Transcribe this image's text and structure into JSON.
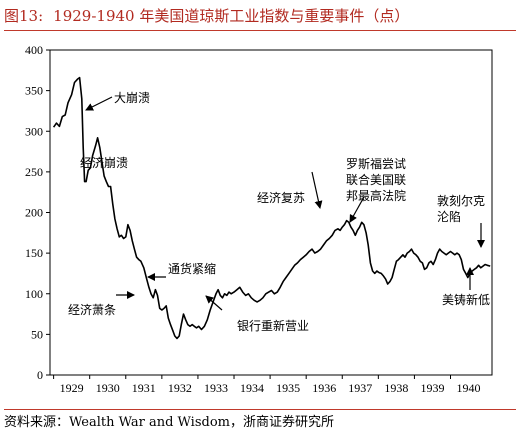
{
  "title_number": "图13:",
  "title_text": "1929-1940 年美国道琼斯工业指数与重要事件（点）",
  "source": "资料来源：Wealth War and Wisdom，浙商证券研究所",
  "colors": {
    "title": "#b22a20",
    "rule": "#c0392b",
    "line": "#000000"
  },
  "chart_data": {
    "type": "line",
    "title": "1929-1940 年美国道琼斯工业指数与重要事件（点）",
    "xlabel": "",
    "ylabel": "",
    "xlim": [
      1928.9,
      1941.15
    ],
    "ylim": [
      0,
      400
    ],
    "yticks": [
      0,
      50,
      100,
      150,
      200,
      250,
      300,
      350,
      400
    ],
    "xticks": [
      "1929",
      "1930",
      "1931",
      "1932",
      "1933",
      "1934",
      "1935",
      "1936",
      "1937",
      "1938",
      "1939",
      "1940"
    ],
    "grid": false,
    "series": [
      {
        "points": [
          [
            1929.0,
            305
          ],
          [
            1929.08,
            310
          ],
          [
            1929.16,
            306
          ],
          [
            1929.24,
            318
          ],
          [
            1929.32,
            320
          ],
          [
            1929.4,
            335
          ],
          [
            1929.5,
            345
          ],
          [
            1929.58,
            360
          ],
          [
            1929.66,
            364
          ],
          [
            1929.72,
            366
          ],
          [
            1929.78,
            340
          ],
          [
            1929.82,
            280
          ],
          [
            1929.86,
            238
          ],
          [
            1929.9,
            238
          ],
          [
            1929.96,
            252
          ],
          [
            1930.02,
            255
          ],
          [
            1930.08,
            270
          ],
          [
            1930.16,
            282
          ],
          [
            1930.22,
            292
          ],
          [
            1930.28,
            280
          ],
          [
            1930.34,
            262
          ],
          [
            1930.4,
            245
          ],
          [
            1930.46,
            238
          ],
          [
            1930.52,
            232
          ],
          [
            1930.58,
            232
          ],
          [
            1930.64,
            210
          ],
          [
            1930.7,
            192
          ],
          [
            1930.76,
            180
          ],
          [
            1930.82,
            170
          ],
          [
            1930.88,
            172
          ],
          [
            1930.94,
            168
          ],
          [
            1931.0,
            170
          ],
          [
            1931.06,
            185
          ],
          [
            1931.12,
            178
          ],
          [
            1931.18,
            165
          ],
          [
            1931.24,
            155
          ],
          [
            1931.3,
            145
          ],
          [
            1931.36,
            142
          ],
          [
            1931.42,
            140
          ],
          [
            1931.5,
            132
          ],
          [
            1931.58,
            118
          ],
          [
            1931.64,
            108
          ],
          [
            1931.7,
            100
          ],
          [
            1931.76,
            95
          ],
          [
            1931.82,
            105
          ],
          [
            1931.88,
            98
          ],
          [
            1931.94,
            82
          ],
          [
            1932.0,
            80
          ],
          [
            1932.06,
            82
          ],
          [
            1932.12,
            85
          ],
          [
            1932.18,
            70
          ],
          [
            1932.24,
            62
          ],
          [
            1932.3,
            55
          ],
          [
            1932.36,
            48
          ],
          [
            1932.42,
            45
          ],
          [
            1932.48,
            48
          ],
          [
            1932.54,
            62
          ],
          [
            1932.6,
            75
          ],
          [
            1932.66,
            68
          ],
          [
            1932.72,
            62
          ],
          [
            1932.78,
            60
          ],
          [
            1932.84,
            62
          ],
          [
            1932.9,
            60
          ],
          [
            1932.96,
            58
          ],
          [
            1933.02,
            60
          ],
          [
            1933.1,
            56
          ],
          [
            1933.18,
            60
          ],
          [
            1933.26,
            68
          ],
          [
            1933.34,
            80
          ],
          [
            1933.42,
            90
          ],
          [
            1933.5,
            100
          ],
          [
            1933.56,
            105
          ],
          [
            1933.62,
            98
          ],
          [
            1933.68,
            95
          ],
          [
            1933.74,
            100
          ],
          [
            1933.8,
            98
          ],
          [
            1933.86,
            102
          ],
          [
            1933.92,
            100
          ],
          [
            1934.0,
            102
          ],
          [
            1934.08,
            105
          ],
          [
            1934.16,
            108
          ],
          [
            1934.24,
            102
          ],
          [
            1934.32,
            98
          ],
          [
            1934.4,
            100
          ],
          [
            1934.48,
            95
          ],
          [
            1934.56,
            92
          ],
          [
            1934.64,
            90
          ],
          [
            1934.72,
            92
          ],
          [
            1934.8,
            95
          ],
          [
            1934.88,
            100
          ],
          [
            1934.96,
            102
          ],
          [
            1935.04,
            104
          ],
          [
            1935.12,
            100
          ],
          [
            1935.2,
            102
          ],
          [
            1935.28,
            108
          ],
          [
            1935.36,
            115
          ],
          [
            1935.44,
            120
          ],
          [
            1935.52,
            125
          ],
          [
            1935.6,
            130
          ],
          [
            1935.68,
            135
          ],
          [
            1935.76,
            138
          ],
          [
            1935.84,
            142
          ],
          [
            1935.92,
            145
          ],
          [
            1936.0,
            148
          ],
          [
            1936.08,
            152
          ],
          [
            1936.16,
            155
          ],
          [
            1936.24,
            150
          ],
          [
            1936.32,
            152
          ],
          [
            1936.4,
            155
          ],
          [
            1936.48,
            160
          ],
          [
            1936.56,
            165
          ],
          [
            1936.64,
            168
          ],
          [
            1936.72,
            172
          ],
          [
            1936.8,
            178
          ],
          [
            1936.88,
            180
          ],
          [
            1936.94,
            178
          ],
          [
            1937.0,
            182
          ],
          [
            1937.06,
            185
          ],
          [
            1937.12,
            190
          ],
          [
            1937.18,
            188
          ],
          [
            1937.24,
            182
          ],
          [
            1937.3,
            178
          ],
          [
            1937.36,
            172
          ],
          [
            1937.42,
            178
          ],
          [
            1937.48,
            182
          ],
          [
            1937.54,
            188
          ],
          [
            1937.6,
            185
          ],
          [
            1937.66,
            175
          ],
          [
            1937.72,
            160
          ],
          [
            1937.78,
            138
          ],
          [
            1937.84,
            128
          ],
          [
            1937.9,
            125
          ],
          [
            1937.96,
            128
          ],
          [
            1938.02,
            126
          ],
          [
            1938.08,
            125
          ],
          [
            1938.14,
            122
          ],
          [
            1938.2,
            118
          ],
          [
            1938.26,
            112
          ],
          [
            1938.32,
            115
          ],
          [
            1938.38,
            120
          ],
          [
            1938.44,
            130
          ],
          [
            1938.5,
            140
          ],
          [
            1938.56,
            142
          ],
          [
            1938.62,
            145
          ],
          [
            1938.68,
            148
          ],
          [
            1938.74,
            145
          ],
          [
            1938.8,
            150
          ],
          [
            1938.86,
            152
          ],
          [
            1938.92,
            155
          ],
          [
            1938.98,
            150
          ],
          [
            1939.04,
            148
          ],
          [
            1939.1,
            145
          ],
          [
            1939.16,
            140
          ],
          [
            1939.22,
            138
          ],
          [
            1939.28,
            130
          ],
          [
            1939.34,
            132
          ],
          [
            1939.4,
            138
          ],
          [
            1939.46,
            140
          ],
          [
            1939.52,
            136
          ],
          [
            1939.58,
            142
          ],
          [
            1939.64,
            150
          ],
          [
            1939.7,
            155
          ],
          [
            1939.76,
            152
          ],
          [
            1939.82,
            150
          ],
          [
            1939.88,
            148
          ],
          [
            1939.94,
            150
          ],
          [
            1940.0,
            152
          ],
          [
            1940.06,
            150
          ],
          [
            1940.12,
            148
          ],
          [
            1940.18,
            150
          ],
          [
            1940.24,
            148
          ],
          [
            1940.3,
            142
          ],
          [
            1940.36,
            130
          ],
          [
            1940.42,
            125
          ],
          [
            1940.48,
            120
          ],
          [
            1940.54,
            125
          ],
          [
            1940.6,
            128
          ],
          [
            1940.66,
            130
          ],
          [
            1940.72,
            132
          ],
          [
            1940.78,
            135
          ],
          [
            1940.84,
            132
          ],
          [
            1940.9,
            134
          ],
          [
            1940.96,
            136
          ],
          [
            1941.02,
            135
          ],
          [
            1941.1,
            134
          ]
        ]
      }
    ],
    "annotations": [
      {
        "id": "crash",
        "lines": [
          "大崩溃"
        ]
      },
      {
        "id": "panic",
        "lines": [
          "经济崩溃"
        ]
      },
      {
        "id": "deflation",
        "lines": [
          "通货紧缩"
        ]
      },
      {
        "id": "depression",
        "lines": [
          "经济萧条"
        ]
      },
      {
        "id": "banks",
        "lines": [
          "银行重新营业"
        ]
      },
      {
        "id": "recovery",
        "lines": [
          "经济复苏"
        ]
      },
      {
        "id": "court",
        "lines": [
          "罗斯福尝试",
          "联合美国联",
          "邦最高法院"
        ]
      },
      {
        "id": "dunkirk",
        "lines": [
          "敦刻尔克",
          "沦陷"
        ]
      },
      {
        "id": "low",
        "lines": [
          "美铸新低"
        ]
      }
    ]
  }
}
